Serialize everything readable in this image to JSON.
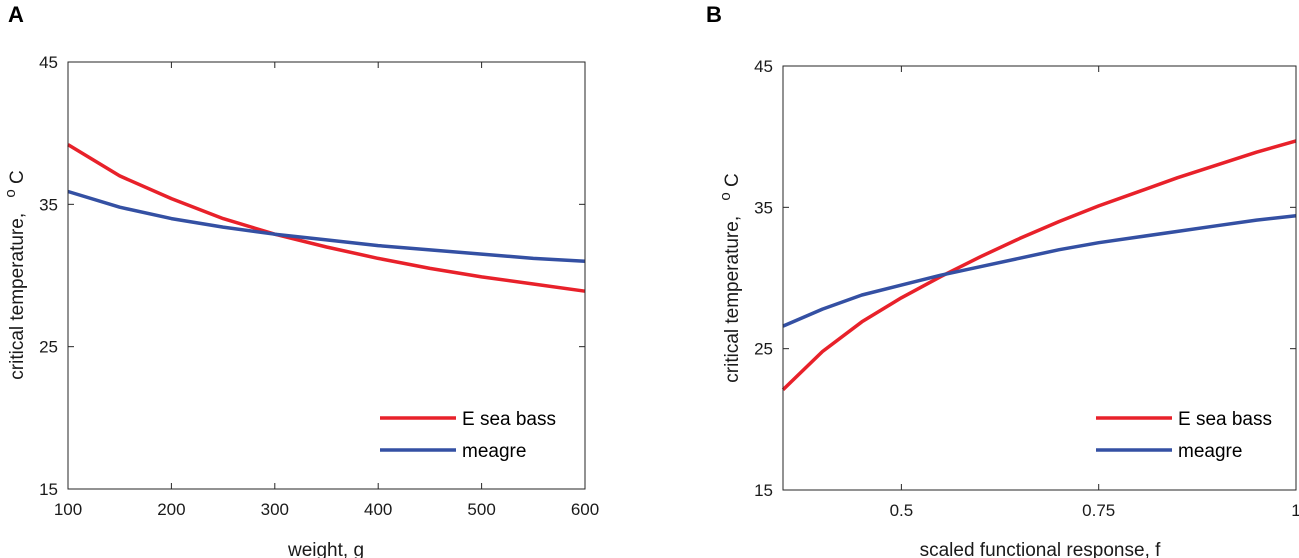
{
  "chart_data": [
    {
      "panel": "A",
      "type": "line",
      "title": "",
      "xlabel": "weight, g",
      "ylabel": "critical temperature,  °C",
      "ylabel_text": "critical temperature,",
      "ylabel_degree": "o",
      "ylabel_unit": "C",
      "xlim": [
        100,
        600
      ],
      "ylim": [
        15,
        45
      ],
      "xticks": [
        100,
        200,
        300,
        400,
        500,
        600
      ],
      "xtick_labels": [
        "100",
        "200",
        "300",
        "400",
        "500",
        "600"
      ],
      "yticks": [
        15,
        25,
        35,
        45
      ],
      "ytick_labels": [
        "15",
        "25",
        "35",
        "45"
      ],
      "legend_position": "bottom-right",
      "series": [
        {
          "name": "E sea bass",
          "color": "#e8212a",
          "x": [
            100,
            150,
            200,
            250,
            300,
            350,
            400,
            450,
            500,
            550,
            600
          ],
          "y": [
            39.2,
            37.0,
            35.4,
            34.0,
            32.9,
            32.0,
            31.2,
            30.5,
            29.9,
            29.4,
            28.9
          ]
        },
        {
          "name": "meagre",
          "color": "#3450a3",
          "x": [
            100,
            150,
            200,
            250,
            300,
            350,
            400,
            450,
            500,
            550,
            600
          ],
          "y": [
            35.9,
            34.8,
            34.0,
            33.4,
            32.9,
            32.5,
            32.1,
            31.8,
            31.5,
            31.2,
            31.0
          ]
        }
      ]
    },
    {
      "panel": "B",
      "type": "line",
      "title": "",
      "xlabel": "scaled functional response, f",
      "ylabel": "critical temperature,  °C",
      "ylabel_text": "critical temperature,",
      "ylabel_degree": "o",
      "ylabel_unit": "C",
      "xlim": [
        0.35,
        1
      ],
      "ylim": [
        15,
        45
      ],
      "xticks": [
        0.5,
        0.75,
        1
      ],
      "xtick_labels": [
        "0.5",
        "0.75",
        "1"
      ],
      "yticks": [
        15,
        25,
        35,
        45
      ],
      "ytick_labels": [
        "15",
        "25",
        "35",
        "45"
      ],
      "legend_position": "bottom-right",
      "series": [
        {
          "name": "E sea bass",
          "color": "#e8212a",
          "x": [
            0.35,
            0.4,
            0.45,
            0.5,
            0.55,
            0.6,
            0.65,
            0.7,
            0.75,
            0.8,
            0.85,
            0.9,
            0.95,
            1.0
          ],
          "y": [
            22.1,
            24.8,
            26.9,
            28.6,
            30.1,
            31.5,
            32.8,
            34.0,
            35.1,
            36.1,
            37.1,
            38.0,
            38.9,
            39.7
          ]
        },
        {
          "name": "meagre",
          "color": "#3450a3",
          "x": [
            0.35,
            0.4,
            0.45,
            0.5,
            0.55,
            0.6,
            0.65,
            0.7,
            0.75,
            0.8,
            0.85,
            0.9,
            0.95,
            1.0
          ],
          "y": [
            26.6,
            27.8,
            28.8,
            29.5,
            30.2,
            30.8,
            31.4,
            32.0,
            32.5,
            32.9,
            33.3,
            33.7,
            34.1,
            34.4
          ]
        }
      ]
    }
  ]
}
